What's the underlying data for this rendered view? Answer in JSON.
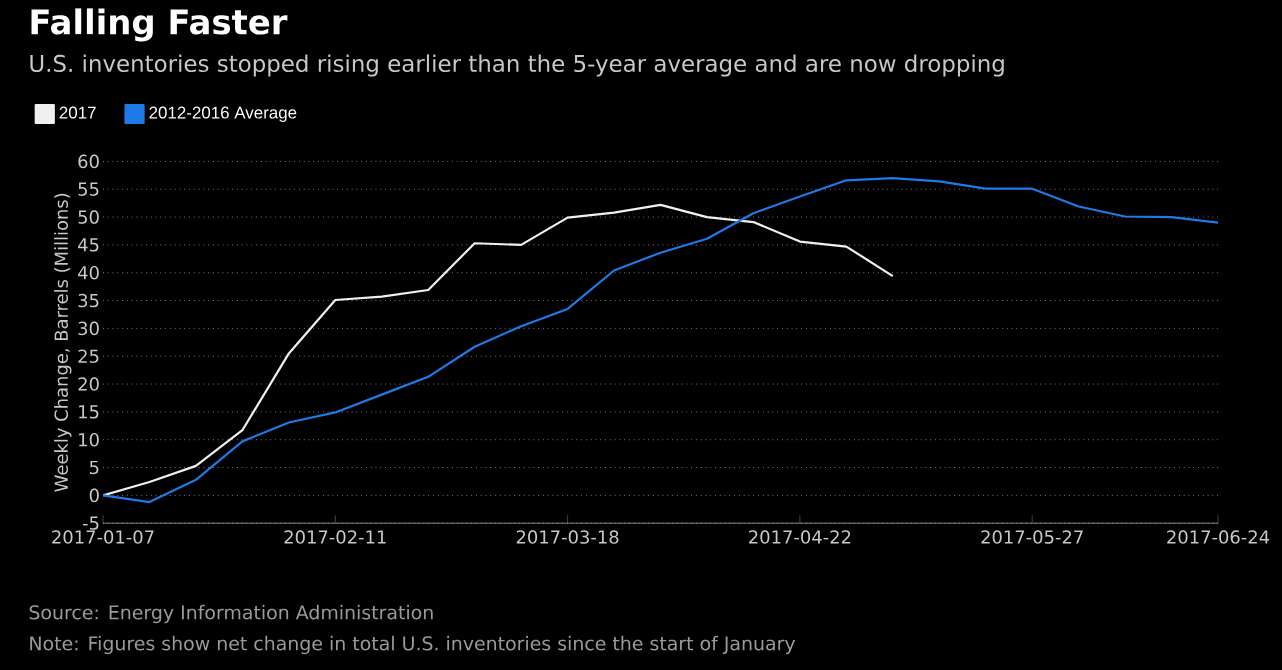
{
  "chart_data": {
    "type": "line",
    "title": "Falling Faster",
    "subtitle": "U.S. inventories stopped rising earlier than the 5-year average and are now dropping",
    "ylabel": "Weekly Change, Barrels (Millions)",
    "x": [
      "2017-01-07",
      "2017-01-14",
      "2017-01-21",
      "2017-01-28",
      "2017-02-04",
      "2017-02-11",
      "2017-02-18",
      "2017-02-25",
      "2017-03-04",
      "2017-03-11",
      "2017-03-18",
      "2017-03-25",
      "2017-04-01",
      "2017-04-08",
      "2017-04-15",
      "2017-04-22",
      "2017-04-29",
      "2017-05-06",
      "2017-05-13",
      "2017-05-20",
      "2017-05-27",
      "2017-06-03",
      "2017-06-10",
      "2017-06-17",
      "2017-06-24"
    ],
    "series": [
      {
        "name": "2017",
        "color": "#f0f0f0",
        "values": [
          0,
          2.4,
          5.3,
          11.7,
          25.5,
          35.1,
          35.7,
          36.9,
          45.3,
          45.0,
          49.9,
          50.8,
          52.2,
          50.0,
          49.1,
          45.6,
          44.7,
          39.4,
          null,
          null,
          null,
          null,
          null,
          null,
          null
        ]
      },
      {
        "name": "2012-2016 Average",
        "color": "#1e7ae6",
        "values": [
          0,
          -1.2,
          2.8,
          9.7,
          13.1,
          14.9,
          18.1,
          21.3,
          26.7,
          30.4,
          33.5,
          40.4,
          43.6,
          46.1,
          50.7,
          53.7,
          56.6,
          57.0,
          56.4,
          55.1,
          55.1,
          51.9,
          50.1,
          50.0,
          49.0
        ]
      }
    ],
    "xlim": [
      "2017-01-07",
      "2017-06-24"
    ],
    "xticks": [
      "2017-01-07",
      "2017-02-11",
      "2017-03-18",
      "2017-04-22",
      "2017-05-27",
      "2017-06-24"
    ],
    "ylim": [
      -5,
      60
    ],
    "yticks": [
      -5,
      0,
      5,
      10,
      15,
      20,
      25,
      30,
      35,
      40,
      45,
      50,
      55,
      60
    ],
    "grid": "y",
    "legend": "top left",
    "marker": "none",
    "line_style": "solid",
    "annotations": [
      "Source: Energy Information Administration",
      "Note: Figures show net change in total U.S. inventories since the start of January"
    ]
  }
}
